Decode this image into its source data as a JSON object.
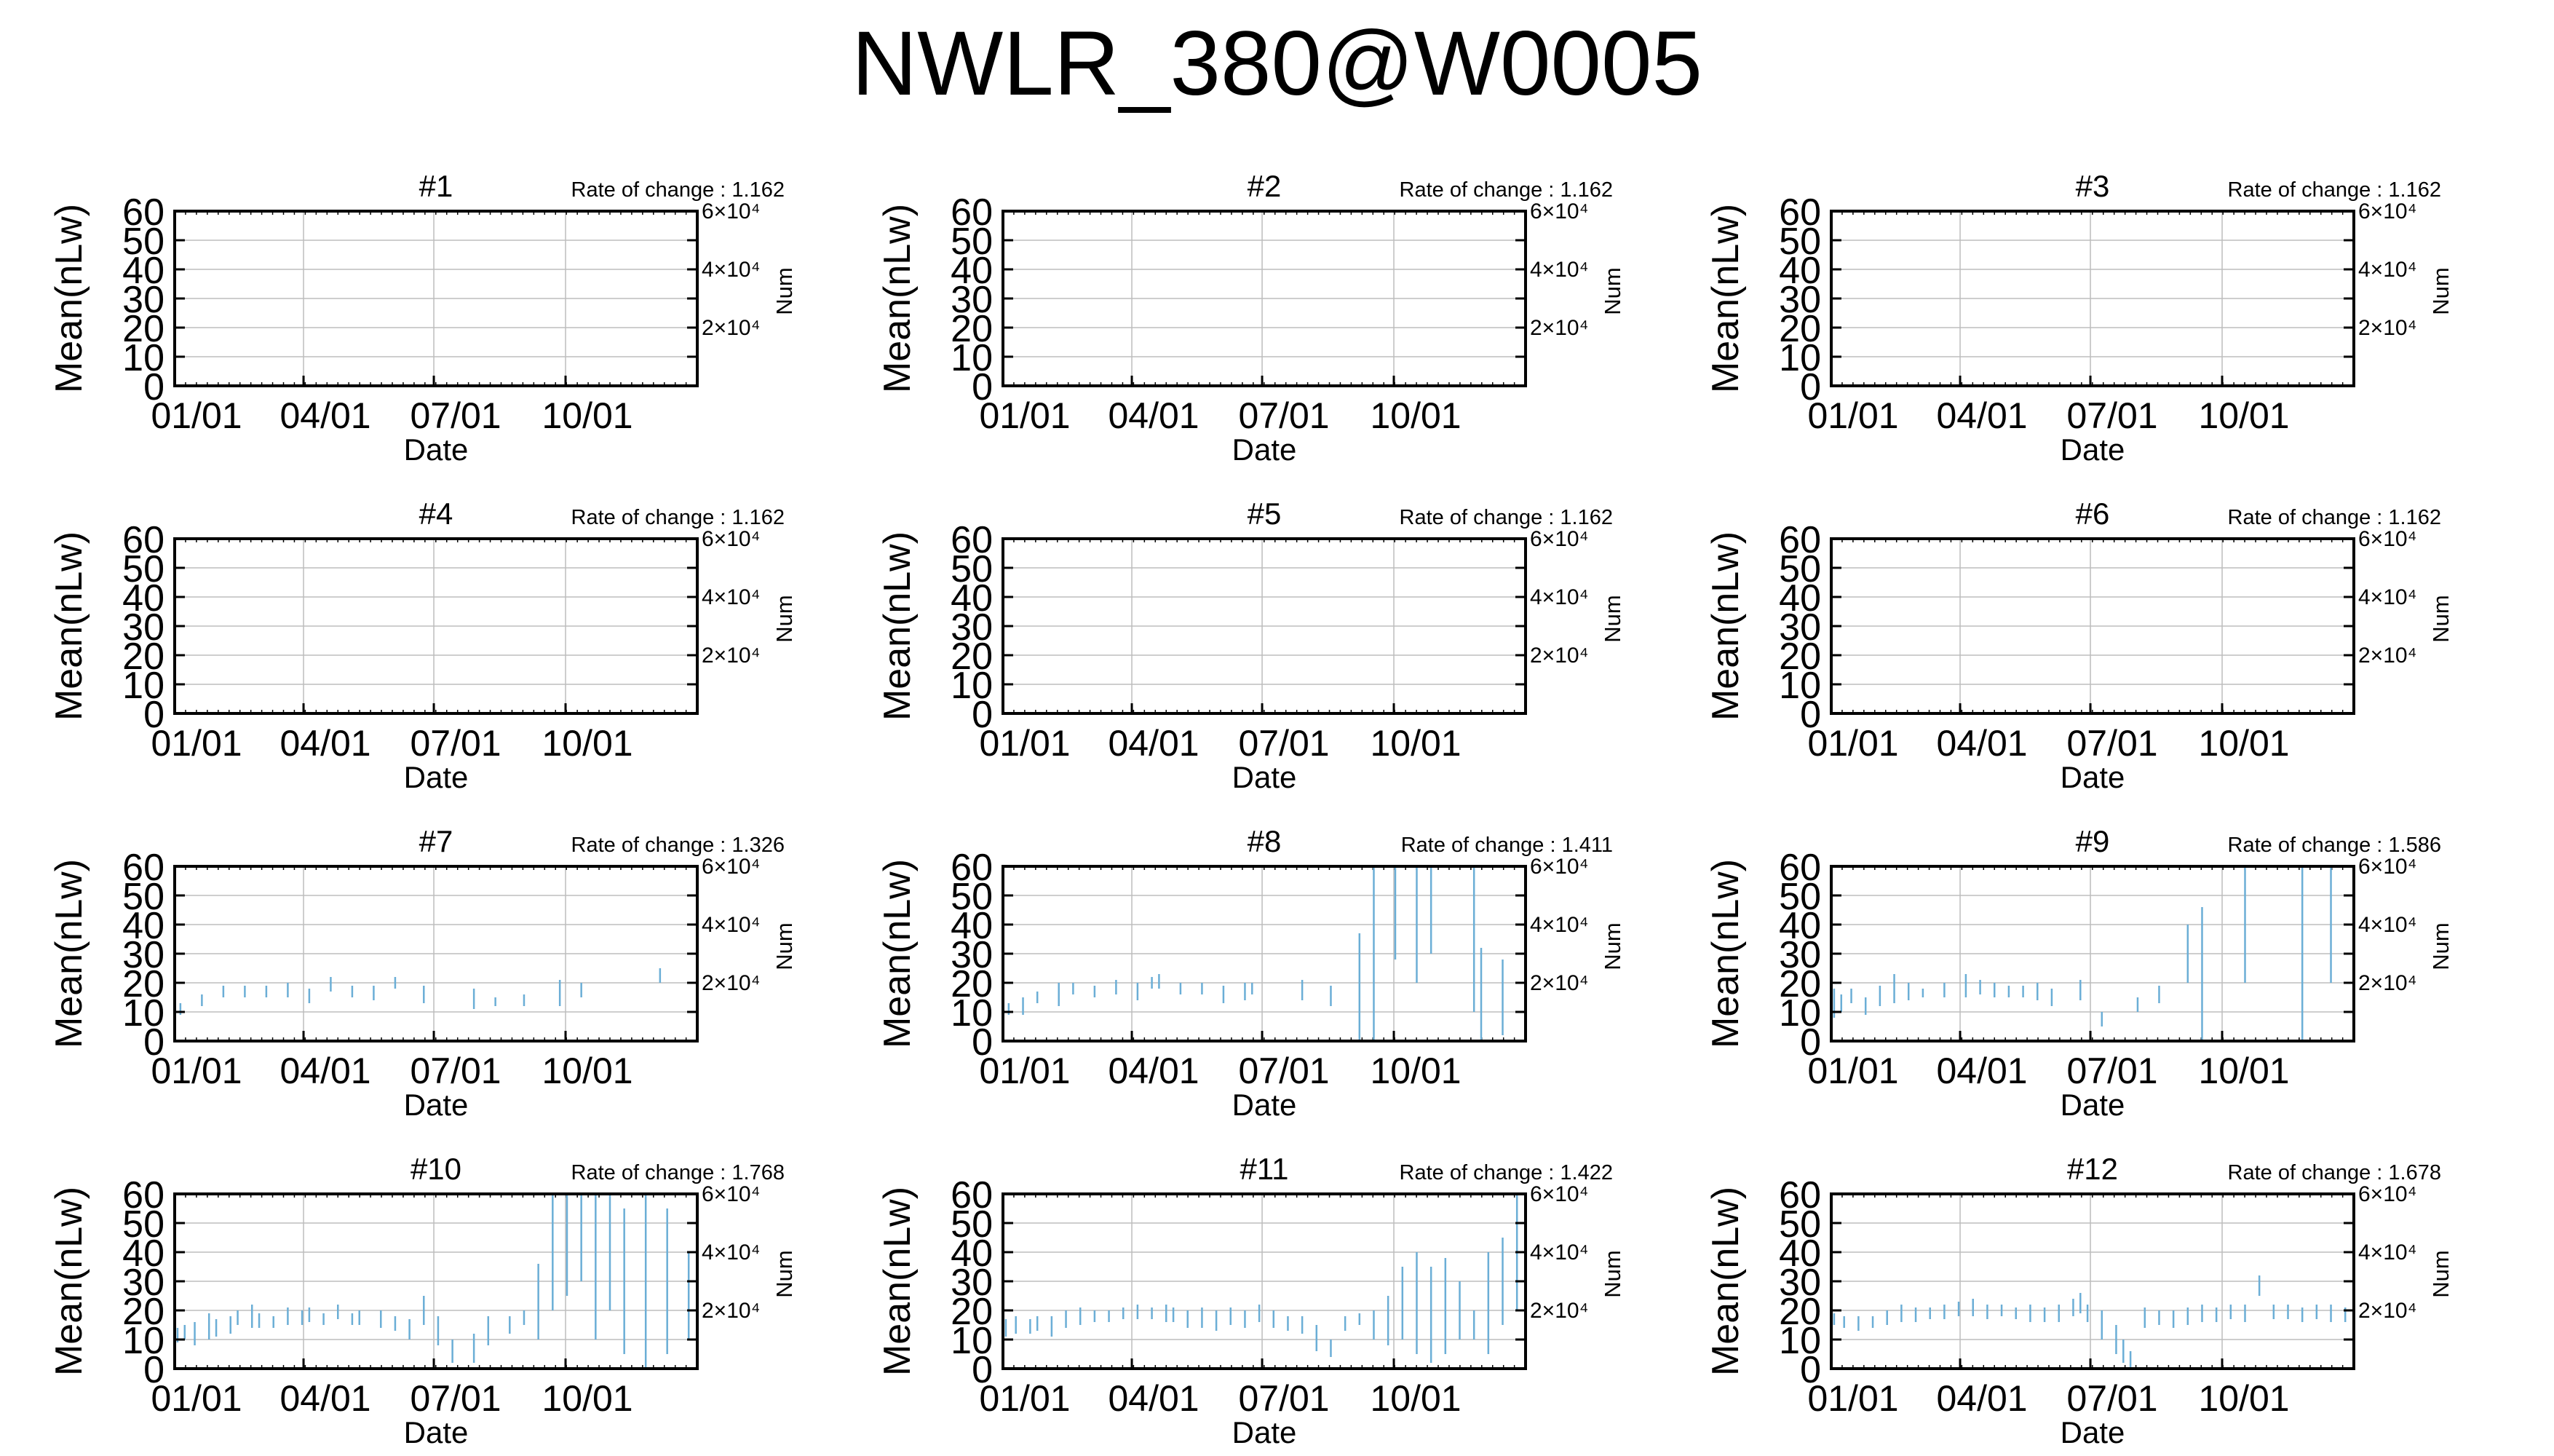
{
  "title": "NWLR_380@W0005",
  "common": {
    "ylabel": "Mean(nLw)",
    "xlabel": "Date",
    "y2label": "Num",
    "rate_prefix": "Rate of change : ",
    "y_ticks": [
      "0",
      "10",
      "20",
      "30",
      "40",
      "50",
      "60"
    ],
    "x_ticks": [
      "01/01",
      "04/01",
      "07/01",
      "10/01"
    ],
    "y2_ticks": [
      "2×10⁴",
      "4×10⁴",
      "6×10⁴"
    ],
    "ylim": [
      0,
      60
    ],
    "xlim_doy": [
      1,
      366
    ],
    "y2lim": [
      0,
      60000
    ],
    "grid": true,
    "errorbar_color": "#6baed6"
  },
  "chart_data": [
    {
      "type": "errorbar",
      "title": "#1",
      "rate_of_change": "1.162",
      "points": []
    },
    {
      "type": "errorbar",
      "title": "#2",
      "rate_of_change": "1.162",
      "points": []
    },
    {
      "type": "errorbar",
      "title": "#3",
      "rate_of_change": "1.162",
      "points": []
    },
    {
      "type": "errorbar",
      "title": "#4",
      "rate_of_change": "1.162",
      "points": []
    },
    {
      "type": "errorbar",
      "title": "#5",
      "rate_of_change": "1.162",
      "points": []
    },
    {
      "type": "errorbar",
      "title": "#6",
      "rate_of_change": "1.162",
      "points": []
    },
    {
      "type": "errorbar",
      "title": "#7",
      "rate_of_change": "1.326",
      "points": [
        [
          5,
          9,
          13
        ],
        [
          20,
          12,
          16
        ],
        [
          35,
          15,
          19
        ],
        [
          50,
          15,
          19
        ],
        [
          65,
          15,
          19
        ],
        [
          80,
          15,
          20
        ],
        [
          95,
          13,
          18
        ],
        [
          110,
          17,
          22
        ],
        [
          125,
          15,
          19
        ],
        [
          140,
          14,
          19
        ],
        [
          155,
          18,
          22
        ],
        [
          175,
          13,
          19
        ],
        [
          210,
          11,
          18
        ],
        [
          225,
          12,
          15
        ],
        [
          245,
          12,
          16
        ],
        [
          270,
          12,
          21
        ],
        [
          285,
          15,
          20
        ],
        [
          340,
          20,
          25
        ]
      ]
    },
    {
      "type": "errorbar",
      "title": "#8",
      "rate_of_change": "1.411",
      "points": [
        [
          5,
          9,
          13
        ],
        [
          15,
          9,
          15
        ],
        [
          25,
          13,
          17
        ],
        [
          40,
          12,
          20
        ],
        [
          50,
          16,
          20
        ],
        [
          65,
          15,
          19
        ],
        [
          80,
          16,
          21
        ],
        [
          95,
          14,
          20
        ],
        [
          105,
          18,
          22
        ],
        [
          110,
          18,
          23
        ],
        [
          125,
          16,
          20
        ],
        [
          140,
          16,
          20
        ],
        [
          155,
          13,
          19
        ],
        [
          170,
          14,
          20
        ],
        [
          175,
          16,
          20
        ],
        [
          210,
          14,
          21
        ],
        [
          230,
          12,
          19
        ],
        [
          250,
          0,
          37
        ],
        [
          260,
          0,
          60
        ],
        [
          275,
          28,
          60
        ],
        [
          290,
          20,
          60
        ],
        [
          300,
          30,
          60
        ],
        [
          330,
          10,
          60
        ],
        [
          335,
          0,
          32
        ],
        [
          350,
          2,
          28
        ]
      ]
    },
    {
      "type": "errorbar",
      "title": "#9",
      "rate_of_change": "1.586",
      "points": [
        [
          3,
          8,
          18
        ],
        [
          8,
          10,
          16
        ],
        [
          15,
          13,
          18
        ],
        [
          25,
          9,
          15
        ],
        [
          35,
          12,
          19
        ],
        [
          45,
          13,
          23
        ],
        [
          55,
          14,
          20
        ],
        [
          65,
          15,
          18
        ],
        [
          80,
          15,
          20
        ],
        [
          95,
          15,
          23
        ],
        [
          105,
          16,
          21
        ],
        [
          115,
          15,
          20
        ],
        [
          125,
          15,
          19
        ],
        [
          135,
          15,
          19
        ],
        [
          145,
          14,
          20
        ],
        [
          155,
          12,
          18
        ],
        [
          175,
          14,
          21
        ],
        [
          190,
          5,
          10
        ],
        [
          215,
          10,
          15
        ],
        [
          230,
          13,
          19
        ],
        [
          250,
          20,
          40
        ],
        [
          260,
          0,
          46
        ],
        [
          290,
          20,
          60
        ],
        [
          330,
          0,
          60
        ],
        [
          350,
          20,
          60
        ]
      ]
    },
    {
      "type": "errorbar",
      "title": "#10",
      "rate_of_change": "1.768",
      "points": [
        [
          3,
          9,
          14
        ],
        [
          8,
          10,
          15
        ],
        [
          15,
          8,
          16
        ],
        [
          25,
          10,
          19
        ],
        [
          30,
          11,
          17
        ],
        [
          40,
          12,
          18
        ],
        [
          45,
          15,
          20
        ],
        [
          55,
          14,
          22
        ],
        [
          60,
          14,
          19
        ],
        [
          70,
          14,
          18
        ],
        [
          80,
          15,
          21
        ],
        [
          90,
          15,
          20
        ],
        [
          95,
          16,
          21
        ],
        [
          105,
          15,
          19
        ],
        [
          115,
          17,
          22
        ],
        [
          125,
          15,
          19
        ],
        [
          130,
          15,
          20
        ],
        [
          145,
          14,
          20
        ],
        [
          155,
          13,
          18
        ],
        [
          165,
          10,
          17
        ],
        [
          175,
          15,
          25
        ],
        [
          185,
          8,
          18
        ],
        [
          195,
          2,
          10
        ],
        [
          210,
          2,
          12
        ],
        [
          220,
          8,
          18
        ],
        [
          235,
          12,
          18
        ],
        [
          245,
          15,
          20
        ],
        [
          255,
          10,
          36
        ],
        [
          265,
          20,
          60
        ],
        [
          275,
          25,
          60
        ],
        [
          285,
          30,
          60
        ],
        [
          295,
          10,
          60
        ],
        [
          305,
          20,
          60
        ],
        [
          315,
          5,
          55
        ],
        [
          330,
          0,
          60
        ],
        [
          345,
          5,
          55
        ],
        [
          360,
          10,
          40
        ]
      ]
    },
    {
      "type": "errorbar",
      "title": "#11",
      "rate_of_change": "1.422",
      "points": [
        [
          3,
          11,
          17
        ],
        [
          10,
          12,
          18
        ],
        [
          20,
          12,
          17
        ],
        [
          25,
          13,
          18
        ],
        [
          35,
          11,
          18
        ],
        [
          45,
          14,
          20
        ],
        [
          55,
          15,
          21
        ],
        [
          65,
          16,
          20
        ],
        [
          75,
          16,
          20
        ],
        [
          85,
          17,
          21
        ],
        [
          95,
          17,
          22
        ],
        [
          105,
          17,
          21
        ],
        [
          115,
          16,
          22
        ],
        [
          120,
          16,
          21
        ],
        [
          130,
          14,
          20
        ],
        [
          140,
          14,
          21
        ],
        [
          150,
          13,
          20
        ],
        [
          160,
          15,
          21
        ],
        [
          170,
          14,
          20
        ],
        [
          180,
          16,
          22
        ],
        [
          190,
          14,
          20
        ],
        [
          200,
          13,
          18
        ],
        [
          210,
          12,
          18
        ],
        [
          220,
          6,
          15
        ],
        [
          230,
          4,
          10
        ],
        [
          240,
          13,
          18
        ],
        [
          250,
          15,
          19
        ],
        [
          260,
          10,
          20
        ],
        [
          270,
          8,
          25
        ],
        [
          280,
          10,
          35
        ],
        [
          290,
          5,
          40
        ],
        [
          300,
          2,
          35
        ],
        [
          310,
          5,
          38
        ],
        [
          320,
          10,
          30
        ],
        [
          330,
          10,
          20
        ],
        [
          340,
          5,
          40
        ],
        [
          350,
          15,
          45
        ],
        [
          360,
          20,
          60
        ]
      ]
    },
    {
      "type": "errorbar",
      "title": "#12",
      "rate_of_change": "1.678",
      "points": [
        [
          3,
          15,
          19
        ],
        [
          10,
          14,
          18
        ],
        [
          20,
          13,
          18
        ],
        [
          30,
          14,
          18
        ],
        [
          40,
          15,
          20
        ],
        [
          50,
          16,
          22
        ],
        [
          60,
          16,
          21
        ],
        [
          70,
          17,
          21
        ],
        [
          80,
          17,
          22
        ],
        [
          90,
          18,
          23
        ],
        [
          100,
          18,
          24
        ],
        [
          110,
          17,
          22
        ],
        [
          120,
          18,
          22
        ],
        [
          130,
          17,
          21
        ],
        [
          140,
          16,
          22
        ],
        [
          150,
          16,
          21
        ],
        [
          160,
          16,
          22
        ],
        [
          170,
          18,
          24
        ],
        [
          175,
          19,
          26
        ],
        [
          180,
          16,
          22
        ],
        [
          190,
          10,
          20
        ],
        [
          200,
          5,
          15
        ],
        [
          205,
          2,
          10
        ],
        [
          210,
          0,
          6
        ],
        [
          220,
          14,
          21
        ],
        [
          230,
          15,
          20
        ],
        [
          240,
          14,
          20
        ],
        [
          250,
          15,
          21
        ],
        [
          260,
          16,
          22
        ],
        [
          270,
          16,
          21
        ],
        [
          280,
          17,
          22
        ],
        [
          290,
          16,
          22
        ],
        [
          300,
          25,
          32
        ],
        [
          310,
          17,
          22
        ],
        [
          320,
          17,
          22
        ],
        [
          330,
          16,
          21
        ],
        [
          340,
          17,
          22
        ],
        [
          350,
          16,
          22
        ],
        [
          360,
          16,
          21
        ]
      ]
    }
  ]
}
